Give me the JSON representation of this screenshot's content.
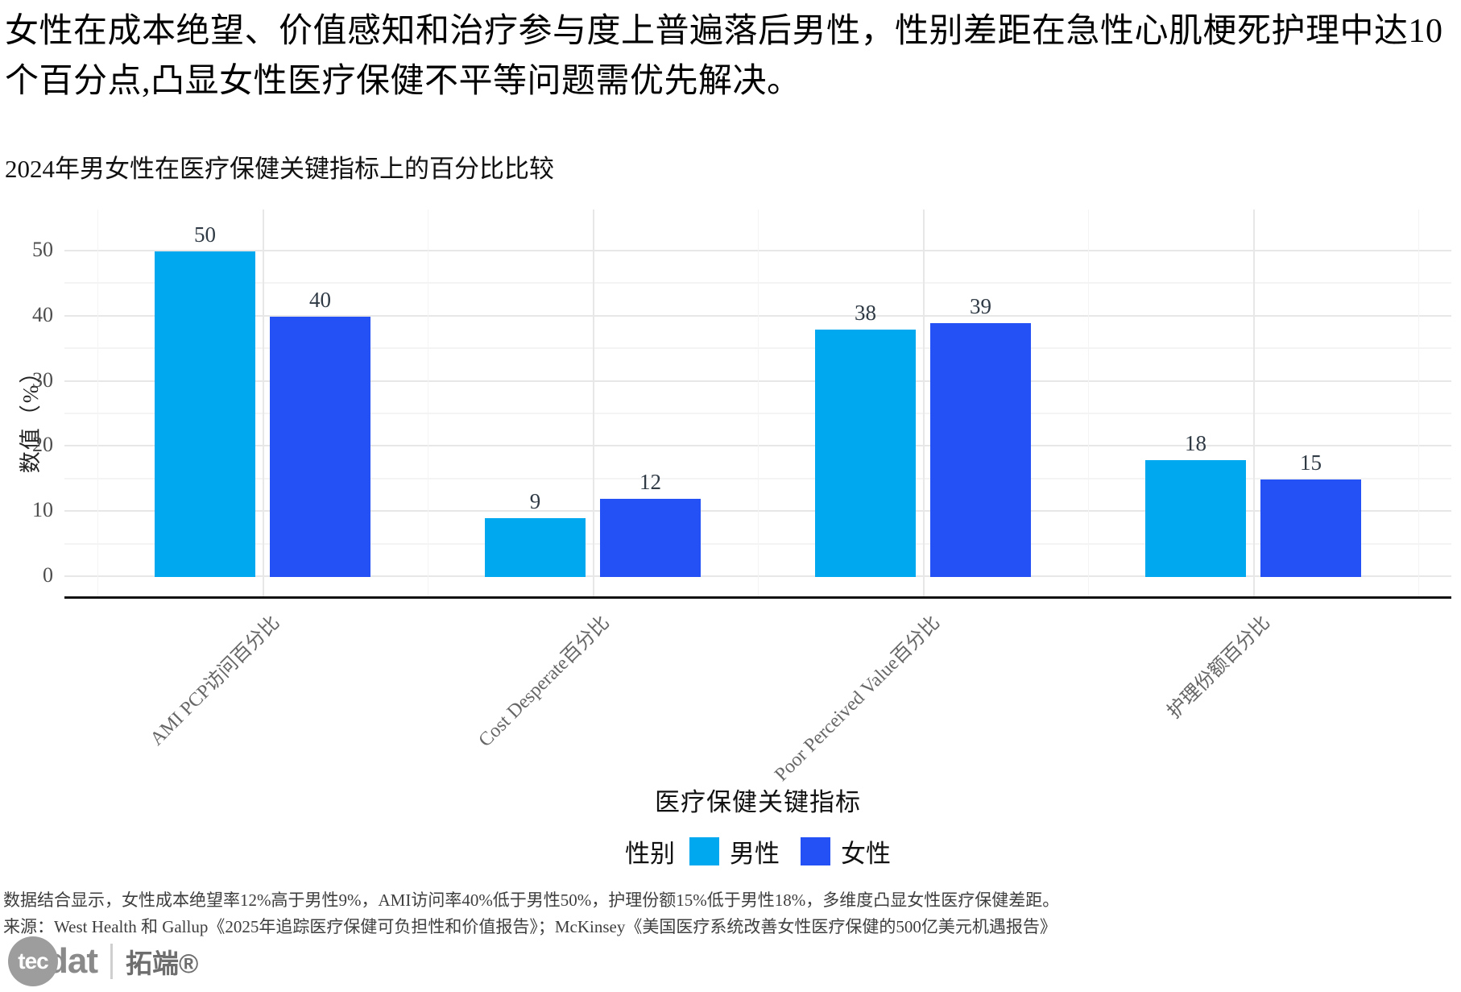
{
  "title": "女性在成本绝望、价值感知和治疗参与度上普遍落后男性，性别差距在急性心肌梗死护理中达10个百分点,凸显女性医疗保健不平等问题需优先解决。",
  "chart_title": "2024年男女性在医疗保健关键指标上的百分比比较",
  "chart_data": {
    "type": "bar",
    "title": "2024年男女性在医疗保健关键指标上的百分比比较",
    "categories": [
      "AMI PCP访问百分比",
      "Cost Desperate百分比",
      "Poor Perceived Value百分比",
      "护理份额百分比"
    ],
    "series": [
      {
        "key": "male",
        "name": "男性",
        "color": "#00A8F0",
        "values": [
          50,
          9,
          38,
          18
        ]
      },
      {
        "key": "female",
        "name": "女性",
        "color": "#2351F5",
        "values": [
          40,
          12,
          39,
          15
        ]
      }
    ],
    "xlabel": "医疗保健关键指标",
    "ylabel": "数值（%）",
    "ylim": [
      0,
      50
    ],
    "yticks": [
      0,
      10,
      20,
      30,
      40,
      50
    ],
    "grid": true,
    "bar_value_labels": true,
    "legend_title": "性别",
    "legend_position": "bottom",
    "colors": {
      "grid_major": "#e7e7e7",
      "grid_minor": "#f4f4f4",
      "axis_line": "#121212"
    }
  },
  "footer": {
    "note": "数据结合显示，女性成本绝望率12%高于男性9%，AMI访问率40%低于男性50%，护理份额15%低于男性18%，多维度凸显女性医疗保健差距。",
    "source": "来源：West Health 和 Gallup《2025年追踪医疗保健可负担性和价值报告》；McKinsey《美国医疗系统改善女性医疗保健的500亿美元机遇报告》"
  },
  "logo": {
    "mark": "tec",
    "suffix": "dat",
    "cn": "拓端®"
  }
}
